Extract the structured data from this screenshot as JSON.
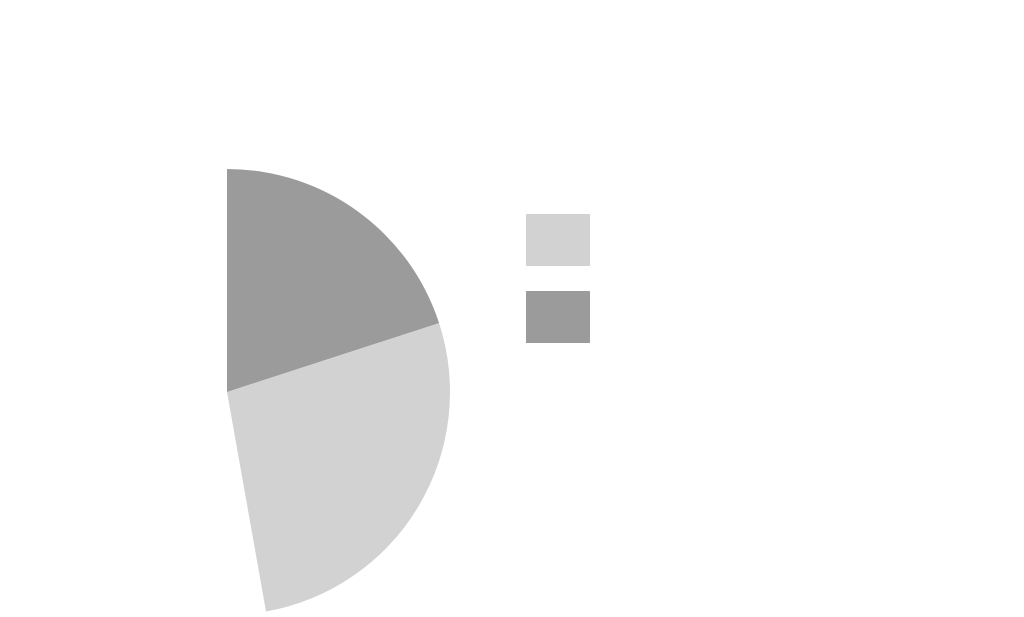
{
  "chart_data": {
    "type": "pie",
    "slices": [
      {
        "value": 20.0,
        "color": "#9b9b9b"
      },
      {
        "value": 27.2,
        "color": "#d2d2d2"
      }
    ],
    "legend": {
      "placement": "right",
      "entries": [
        {
          "color": "#d2d2d2"
        },
        {
          "color": "#9b9b9b"
        }
      ]
    },
    "start_angle_deg": 0,
    "direction": "clockwise",
    "full_circle_total": 100
  }
}
